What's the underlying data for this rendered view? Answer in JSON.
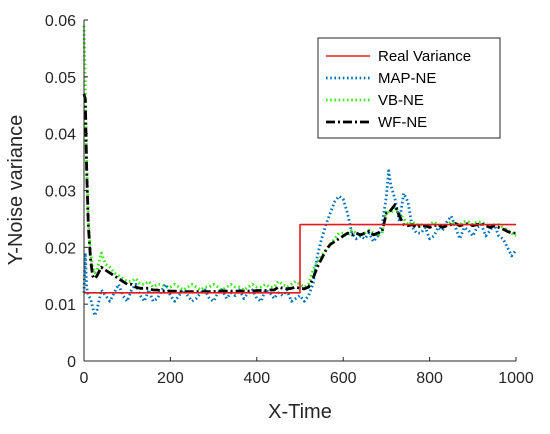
{
  "chart_data": {
    "type": "line",
    "title": "",
    "xlabel": "X-Time",
    "ylabel": "Y-Noise variance",
    "xlim": [
      0,
      1000
    ],
    "ylim": [
      0,
      0.06
    ],
    "xticks": [
      0,
      200,
      400,
      600,
      800,
      1000
    ],
    "xtick_labels": [
      "0",
      "200",
      "400",
      "600",
      "800",
      "1000"
    ],
    "yticks": [
      0,
      0.01,
      0.02,
      0.03,
      0.04,
      0.05,
      0.06
    ],
    "ytick_labels": [
      "0",
      "0.01",
      "0.02",
      "0.03",
      "0.04",
      "0.05",
      "0.06"
    ],
    "grid": false,
    "legend_position": "top-right",
    "series": [
      {
        "name": "Real Variance",
        "color": "#e41a1c",
        "style": "solid",
        "x": [
          0,
          500,
          500,
          1000
        ],
        "y": [
          0.012,
          0.012,
          0.024,
          0.024
        ]
      },
      {
        "name": "MAP-NE",
        "color": "#0072bd",
        "style": "dotted",
        "x": [
          0,
          3,
          6,
          10,
          15,
          20,
          25,
          30,
          40,
          50,
          60,
          70,
          80,
          90,
          100,
          110,
          120,
          130,
          140,
          150,
          160,
          170,
          180,
          190,
          200,
          210,
          220,
          230,
          240,
          250,
          260,
          270,
          280,
          290,
          300,
          310,
          320,
          330,
          340,
          350,
          360,
          370,
          380,
          390,
          400,
          410,
          420,
          430,
          440,
          450,
          460,
          470,
          480,
          490,
          500,
          510,
          520,
          530,
          540,
          550,
          560,
          570,
          580,
          590,
          600,
          610,
          620,
          630,
          640,
          650,
          660,
          670,
          680,
          690,
          700,
          705,
          710,
          720,
          730,
          740,
          750,
          760,
          770,
          780,
          790,
          800,
          810,
          820,
          830,
          840,
          850,
          860,
          870,
          880,
          890,
          900,
          910,
          920,
          930,
          940,
          950,
          960,
          970,
          980,
          990,
          1000
        ],
        "y": [
          0.012,
          0.019,
          0.013,
          0.0115,
          0.011,
          0.0095,
          0.008,
          0.009,
          0.0125,
          0.0115,
          0.0105,
          0.012,
          0.0135,
          0.0115,
          0.0105,
          0.0125,
          0.0135,
          0.0115,
          0.0105,
          0.0125,
          0.0105,
          0.011,
          0.0125,
          0.0135,
          0.0115,
          0.0105,
          0.0115,
          0.0125,
          0.0115,
          0.0105,
          0.011,
          0.012,
          0.0125,
          0.011,
          0.0105,
          0.012,
          0.0125,
          0.011,
          0.012,
          0.0115,
          0.0125,
          0.011,
          0.012,
          0.0125,
          0.011,
          0.0105,
          0.0125,
          0.012,
          0.011,
          0.012,
          0.0115,
          0.0125,
          0.0105,
          0.011,
          0.0115,
          0.0105,
          0.0115,
          0.0135,
          0.0185,
          0.0215,
          0.024,
          0.026,
          0.028,
          0.029,
          0.0285,
          0.026,
          0.0225,
          0.0215,
          0.022,
          0.0215,
          0.0225,
          0.021,
          0.022,
          0.024,
          0.029,
          0.0335,
          0.031,
          0.0285,
          0.0245,
          0.0295,
          0.028,
          0.0235,
          0.0225,
          0.0225,
          0.0235,
          0.0215,
          0.022,
          0.0235,
          0.023,
          0.0245,
          0.0255,
          0.0235,
          0.0215,
          0.0235,
          0.023,
          0.022,
          0.0235,
          0.024,
          0.022,
          0.023,
          0.024,
          0.022,
          0.0215,
          0.02,
          0.0185,
          0.0195
        ]
      },
      {
        "name": "VB-NE",
        "color": "#33ee11",
        "style": "dotted",
        "x": [
          0,
          3,
          6,
          10,
          15,
          20,
          25,
          30,
          40,
          50,
          60,
          70,
          80,
          90,
          100,
          110,
          120,
          130,
          140,
          150,
          160,
          170,
          180,
          190,
          200,
          210,
          220,
          230,
          240,
          250,
          260,
          270,
          280,
          290,
          300,
          310,
          320,
          330,
          340,
          350,
          360,
          370,
          380,
          390,
          400,
          410,
          420,
          430,
          440,
          450,
          460,
          470,
          480,
          490,
          500,
          510,
          520,
          530,
          540,
          550,
          560,
          570,
          580,
          590,
          600,
          610,
          620,
          630,
          640,
          650,
          660,
          670,
          680,
          690,
          700,
          710,
          720,
          730,
          740,
          750,
          760,
          770,
          780,
          790,
          800,
          810,
          820,
          830,
          840,
          850,
          860,
          870,
          880,
          890,
          900,
          910,
          920,
          930,
          940,
          950,
          960,
          970,
          980,
          990,
          1000
        ],
        "y": [
          0.059,
          0.048,
          0.036,
          0.025,
          0.019,
          0.0165,
          0.0155,
          0.016,
          0.019,
          0.017,
          0.0165,
          0.0155,
          0.015,
          0.0145,
          0.014,
          0.014,
          0.0145,
          0.0135,
          0.0135,
          0.014,
          0.013,
          0.0135,
          0.0135,
          0.013,
          0.013,
          0.0135,
          0.013,
          0.0125,
          0.013,
          0.0135,
          0.013,
          0.0125,
          0.013,
          0.013,
          0.0135,
          0.013,
          0.0125,
          0.013,
          0.0135,
          0.013,
          0.013,
          0.0125,
          0.013,
          0.0135,
          0.013,
          0.013,
          0.0135,
          0.013,
          0.013,
          0.014,
          0.0135,
          0.013,
          0.0135,
          0.014,
          0.0135,
          0.013,
          0.0135,
          0.016,
          0.0175,
          0.0185,
          0.0195,
          0.0205,
          0.0215,
          0.0225,
          0.0225,
          0.022,
          0.023,
          0.0225,
          0.022,
          0.0225,
          0.023,
          0.0225,
          0.022,
          0.0225,
          0.0265,
          0.026,
          0.027,
          0.026,
          0.025,
          0.024,
          0.0245,
          0.024,
          0.024,
          0.0235,
          0.024,
          0.0245,
          0.024,
          0.0235,
          0.024,
          0.0245,
          0.024,
          0.024,
          0.0245,
          0.0245,
          0.024,
          0.0245,
          0.0245,
          0.024,
          0.0235,
          0.024,
          0.024,
          0.0235,
          0.023,
          0.0225,
          0.022
        ]
      },
      {
        "name": "WF-NE",
        "color": "#000000",
        "style": "dashdot",
        "x": [
          0,
          3,
          6,
          10,
          15,
          20,
          25,
          30,
          40,
          50,
          60,
          70,
          80,
          90,
          100,
          110,
          120,
          130,
          140,
          150,
          160,
          170,
          180,
          190,
          200,
          210,
          220,
          230,
          240,
          250,
          260,
          270,
          280,
          290,
          300,
          310,
          320,
          330,
          340,
          350,
          360,
          370,
          380,
          390,
          400,
          410,
          420,
          430,
          440,
          450,
          460,
          470,
          480,
          490,
          500,
          510,
          520,
          530,
          540,
          550,
          560,
          570,
          580,
          590,
          600,
          610,
          620,
          630,
          640,
          650,
          660,
          670,
          680,
          690,
          700,
          710,
          720,
          730,
          740,
          750,
          760,
          770,
          780,
          790,
          800,
          810,
          820,
          830,
          840,
          850,
          860,
          870,
          880,
          890,
          900,
          910,
          920,
          930,
          940,
          950,
          960,
          970,
          980,
          990,
          1000
        ],
        "y": [
          0.047,
          0.046,
          0.034,
          0.024,
          0.018,
          0.015,
          0.0145,
          0.015,
          0.0165,
          0.016,
          0.0155,
          0.015,
          0.0145,
          0.014,
          0.0135,
          0.0135,
          0.013,
          0.0128,
          0.0128,
          0.0128,
          0.0125,
          0.0125,
          0.0123,
          0.0123,
          0.0123,
          0.0123,
          0.0122,
          0.0122,
          0.0122,
          0.0122,
          0.0122,
          0.0122,
          0.0122,
          0.0122,
          0.0122,
          0.0123,
          0.0123,
          0.0123,
          0.0123,
          0.0123,
          0.0123,
          0.0123,
          0.0123,
          0.0123,
          0.0124,
          0.0124,
          0.0124,
          0.0125,
          0.0125,
          0.013,
          0.0128,
          0.0127,
          0.0128,
          0.013,
          0.0128,
          0.0127,
          0.013,
          0.0145,
          0.0165,
          0.018,
          0.0195,
          0.0205,
          0.021,
          0.0215,
          0.022,
          0.0225,
          0.0222,
          0.0225,
          0.0222,
          0.0225,
          0.0228,
          0.0222,
          0.0225,
          0.0228,
          0.026,
          0.0265,
          0.0275,
          0.0255,
          0.024,
          0.0238,
          0.024,
          0.0235,
          0.0238,
          0.0238,
          0.0235,
          0.0238,
          0.024,
          0.0235,
          0.0238,
          0.024,
          0.0242,
          0.0238,
          0.024,
          0.0242,
          0.0238,
          0.024,
          0.0242,
          0.0238,
          0.0235,
          0.0238,
          0.0235,
          0.0232,
          0.0228,
          0.0225,
          0.0225
        ]
      }
    ]
  }
}
